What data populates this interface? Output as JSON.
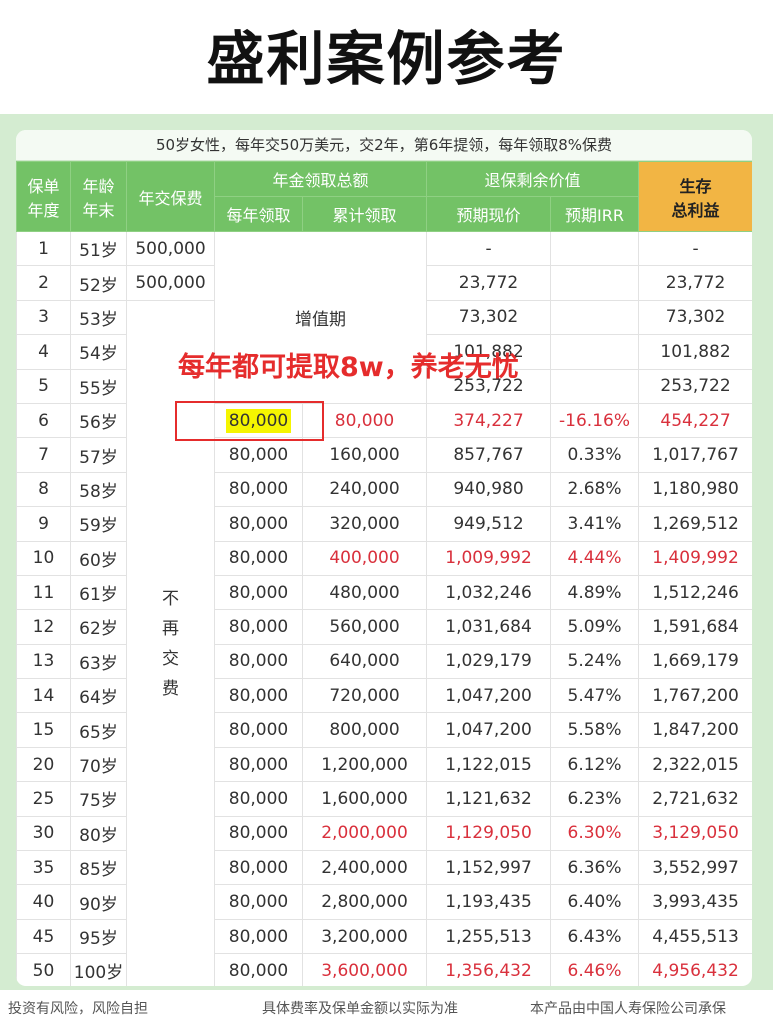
{
  "page": {
    "title": "盛利案例参考",
    "subtitle": "50岁女性，每年交50万美元，交2年，第6年提领，每年领取8%保费",
    "callout": "每年都可提取8w，养老无忧"
  },
  "headers": {
    "col1_line1": "保单",
    "col1_line2": "年度",
    "col2_line1": "年龄",
    "col2_line2": "年末",
    "col3": "年交保费",
    "group_annuity": "年金领取总额",
    "annual_withdraw": "每年领取",
    "cumulative_withdraw": "累计领取",
    "group_surrender": "退保剩余价值",
    "expected_value": "预期现价",
    "expected_irr": "预期IRR",
    "survival_line1": "生存",
    "survival_line2": "总利益"
  },
  "merged": {
    "growth_period": "增值期",
    "no_more_payment": [
      "不",
      "再",
      "交",
      "费"
    ]
  },
  "rows": [
    {
      "year": "1",
      "age": "51岁",
      "premium": "500,000",
      "annual": "",
      "cumulative": "",
      "value": "-",
      "irr": "",
      "total": "-",
      "red": false
    },
    {
      "year": "2",
      "age": "52岁",
      "premium": "500,000",
      "annual": "",
      "cumulative": "",
      "value": "23,772",
      "irr": "",
      "total": "23,772",
      "red": false
    },
    {
      "year": "3",
      "age": "53岁",
      "premium": "",
      "annual": "",
      "cumulative": "",
      "value": "73,302",
      "irr": "",
      "total": "73,302",
      "red": false
    },
    {
      "year": "4",
      "age": "54岁",
      "premium": "",
      "annual": "",
      "cumulative": "",
      "value": "101,882",
      "irr": "",
      "total": "101,882",
      "red": false
    },
    {
      "year": "5",
      "age": "55岁",
      "premium": "",
      "annual": "",
      "cumulative": "",
      "value": "253,722",
      "irr": "",
      "total": "253,722",
      "red": false
    },
    {
      "year": "6",
      "age": "56岁",
      "premium": "",
      "annual": "80,000",
      "cumulative": "80,000",
      "value": "374,227",
      "irr": "-16.16%",
      "total": "454,227",
      "red": true
    },
    {
      "year": "7",
      "age": "57岁",
      "premium": "",
      "annual": "80,000",
      "cumulative": "160,000",
      "value": "857,767",
      "irr": "0.33%",
      "total": "1,017,767",
      "red": false
    },
    {
      "year": "8",
      "age": "58岁",
      "premium": "",
      "annual": "80,000",
      "cumulative": "240,000",
      "value": "940,980",
      "irr": "2.68%",
      "total": "1,180,980",
      "red": false
    },
    {
      "year": "9",
      "age": "59岁",
      "premium": "",
      "annual": "80,000",
      "cumulative": "320,000",
      "value": "949,512",
      "irr": "3.41%",
      "total": "1,269,512",
      "red": false
    },
    {
      "year": "10",
      "age": "60岁",
      "premium": "",
      "annual": "80,000",
      "cumulative": "400,000",
      "value": "1,009,992",
      "irr": "4.44%",
      "total": "1,409,992",
      "red": true
    },
    {
      "year": "11",
      "age": "61岁",
      "premium": "",
      "annual": "80,000",
      "cumulative": "480,000",
      "value": "1,032,246",
      "irr": "4.89%",
      "total": "1,512,246",
      "red": false
    },
    {
      "year": "12",
      "age": "62岁",
      "premium": "",
      "annual": "80,000",
      "cumulative": "560,000",
      "value": "1,031,684",
      "irr": "5.09%",
      "total": "1,591,684",
      "red": false
    },
    {
      "year": "13",
      "age": "63岁",
      "premium": "",
      "annual": "80,000",
      "cumulative": "640,000",
      "value": "1,029,179",
      "irr": "5.24%",
      "total": "1,669,179",
      "red": false
    },
    {
      "year": "14",
      "age": "64岁",
      "premium": "",
      "annual": "80,000",
      "cumulative": "720,000",
      "value": "1,047,200",
      "irr": "5.47%",
      "total": "1,767,200",
      "red": false
    },
    {
      "year": "15",
      "age": "65岁",
      "premium": "",
      "annual": "80,000",
      "cumulative": "800,000",
      "value": "1,047,200",
      "irr": "5.58%",
      "total": "1,847,200",
      "red": false
    },
    {
      "year": "20",
      "age": "70岁",
      "premium": "",
      "annual": "80,000",
      "cumulative": "1,200,000",
      "value": "1,122,015",
      "irr": "6.12%",
      "total": "2,322,015",
      "red": false
    },
    {
      "year": "25",
      "age": "75岁",
      "premium": "",
      "annual": "80,000",
      "cumulative": "1,600,000",
      "value": "1,121,632",
      "irr": "6.23%",
      "total": "2,721,632",
      "red": false
    },
    {
      "year": "30",
      "age": "80岁",
      "premium": "",
      "annual": "80,000",
      "cumulative": "2,000,000",
      "value": "1,129,050",
      "irr": "6.30%",
      "total": "3,129,050",
      "red": true
    },
    {
      "year": "35",
      "age": "85岁",
      "premium": "",
      "annual": "80,000",
      "cumulative": "2,400,000",
      "value": "1,152,997",
      "irr": "6.36%",
      "total": "3,552,997",
      "red": false
    },
    {
      "year": "40",
      "age": "90岁",
      "premium": "",
      "annual": "80,000",
      "cumulative": "2,800,000",
      "value": "1,193,435",
      "irr": "6.40%",
      "total": "3,993,435",
      "red": false
    },
    {
      "year": "45",
      "age": "95岁",
      "premium": "",
      "annual": "80,000",
      "cumulative": "3,200,000",
      "value": "1,255,513",
      "irr": "6.43%",
      "total": "4,455,513",
      "red": false
    },
    {
      "year": "50",
      "age": "100岁",
      "premium": "",
      "annual": "80,000",
      "cumulative": "3,600,000",
      "value": "1,356,432",
      "irr": "6.46%",
      "total": "4,956,432",
      "red": true
    }
  ],
  "footer": {
    "left": "投资有风险，风险自担",
    "middle": "具体费率及保单金额以实际为准",
    "right": "本产品由中国人寿保险公司承保"
  },
  "colors": {
    "header_green": "#73c266",
    "gold": "#f2b544",
    "highlight_red": "#d9303c",
    "callout_red": "#e52c2c"
  }
}
